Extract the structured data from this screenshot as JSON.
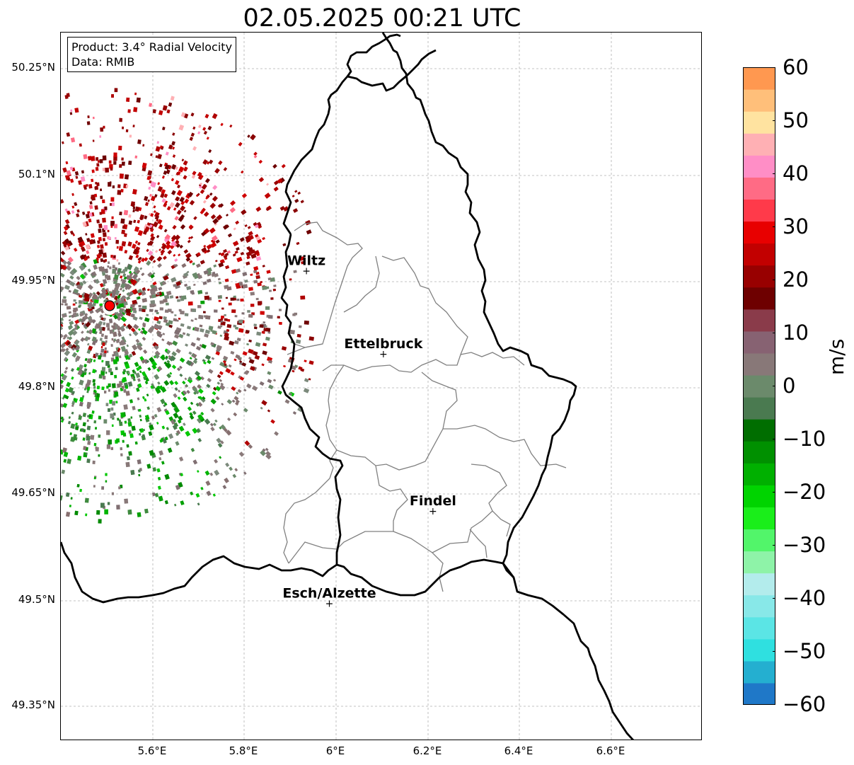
{
  "title": "02.05.2025 00:21 UTC",
  "info": {
    "product": "Product: 3.4° Radial Velocity",
    "data": "Data: RMIB"
  },
  "axes": {
    "y_ticks": [
      "50.25°N",
      "50.1°N",
      "49.95°N",
      "49.8°N",
      "49.65°N",
      "49.5°N",
      "49.35°N"
    ],
    "x_ticks": [
      "5.6°E",
      "5.8°E",
      "6°E",
      "6.2°E",
      "6.4°E",
      "6.6°E"
    ]
  },
  "cities": [
    {
      "name": "Wiltz",
      "lon": 5.935,
      "lat": 49.965
    },
    {
      "name": "Ettelbruck",
      "lon": 6.103,
      "lat": 49.848
    },
    {
      "name": "Findel",
      "lon": 6.211,
      "lat": 49.626
    },
    {
      "name": "Esch/Alzette",
      "lon": 5.985,
      "lat": 49.496
    }
  ],
  "radar": {
    "lon": 5.505,
    "lat": 49.914
  },
  "colorbar": {
    "unit": "m/s",
    "ticks": [
      "60",
      "50",
      "40",
      "30",
      "20",
      "10",
      "0",
      "−10",
      "−20",
      "−30",
      "−40",
      "−50",
      "−60"
    ],
    "colors": [
      "#1f78c8",
      "#24afd0",
      "#2fe0e0",
      "#5be5e5",
      "#88e8e8",
      "#b3ecec",
      "#8ef3a8",
      "#52f56a",
      "#1aee1a",
      "#00d400",
      "#00b000",
      "#009000",
      "#006e00",
      "#4a7a50",
      "#6b8a6b",
      "#887878",
      "#876272",
      "#8a3b4a",
      "#6e0000",
      "#980000",
      "#c20000",
      "#e80000",
      "#ff3a4a",
      "#ff6b85",
      "#ff8ec6",
      "#ffb0b4",
      "#ffe3a0",
      "#ffbf7a",
      "#ff9850"
    ]
  },
  "map_notes": "Luxembourg radar velocity map"
}
